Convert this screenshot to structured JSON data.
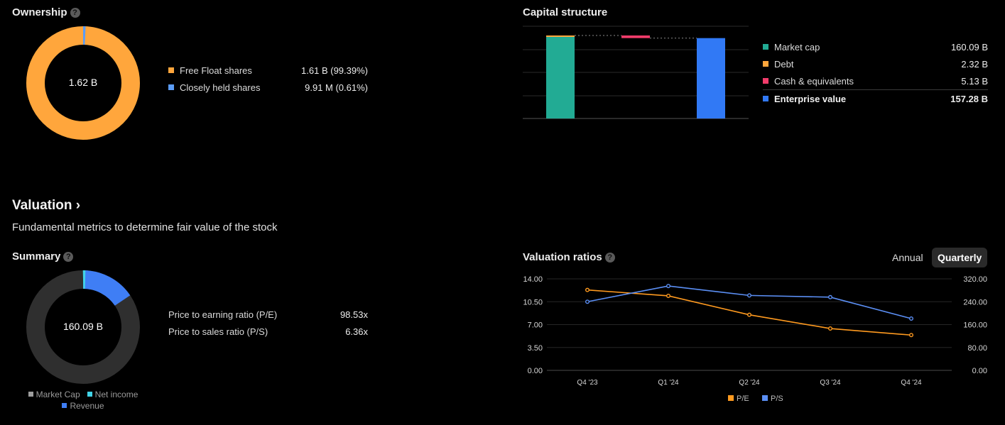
{
  "ownership": {
    "title": "Ownership",
    "center_label": "1.62 B",
    "items": [
      {
        "label": "Free Float shares",
        "value": "1.61 B (99.39%)",
        "fraction": 0.9939,
        "color": "#ffa63c"
      },
      {
        "label": "Closely held shares",
        "value": "9.91 M (0.61%)",
        "fraction": 0.0061,
        "color": "#5b9cf6"
      }
    ]
  },
  "capital": {
    "title": "Capital structure",
    "items": [
      {
        "label": "Market cap",
        "value": "160.09 B",
        "amount": 160.09,
        "color": "#22ab94"
      },
      {
        "label": "Debt",
        "value": "2.32 B",
        "amount": 2.32,
        "color": "#ffa63c"
      },
      {
        "label": "Cash & equivalents",
        "value": "5.13 B",
        "amount": 5.13,
        "color": "#f23c6b"
      },
      {
        "label": "Enterprise value",
        "value": "157.28 B",
        "amount": 157.28,
        "color": "#3179f5"
      }
    ]
  },
  "valuation": {
    "title": "Valuation",
    "chevron": "›",
    "subtitle": "Fundamental metrics to determine fair value of the stock"
  },
  "summary": {
    "title": "Summary",
    "center_label": "160.09 B",
    "legend": [
      {
        "label": "Market Cap",
        "color": "#9e9e9e"
      },
      {
        "label": "Net income",
        "color": "#41d3e6"
      },
      {
        "label": "Revenue",
        "color": "#3f7ef5"
      }
    ],
    "ratios": [
      {
        "label": "Price to earning ratio (P/E)",
        "value": "98.53x"
      },
      {
        "label": "Price to sales ratio (P/S)",
        "value": "6.36x"
      }
    ]
  },
  "ratios_panel": {
    "title": "Valuation ratios",
    "toggles": [
      {
        "label": "Annual",
        "active": false
      },
      {
        "label": "Quarterly",
        "active": true
      }
    ]
  },
  "chart_data": {
    "type": "line",
    "categories": [
      "Q4 '23",
      "Q1 '24",
      "Q2 '24",
      "Q3 '24",
      "Q4 '24"
    ],
    "series": [
      {
        "name": "P/E",
        "axis": "left",
        "color": "#ff9a1f",
        "values": [
          12.3,
          11.4,
          8.5,
          6.4,
          5.4
        ]
      },
      {
        "name": "P/S",
        "axis": "right",
        "color": "#5b8ff5",
        "values": [
          240,
          295,
          262,
          256,
          181
        ]
      }
    ],
    "y_left": {
      "ticks": [
        "14.00",
        "10.50",
        "7.00",
        "3.50",
        "0.00"
      ],
      "range": [
        0,
        14
      ]
    },
    "y_right": {
      "ticks": [
        "320.00",
        "240.00",
        "160.00",
        "80.00",
        "0.00"
      ],
      "range": [
        0,
        320
      ]
    },
    "grid": true,
    "legend_position": "bottom"
  }
}
